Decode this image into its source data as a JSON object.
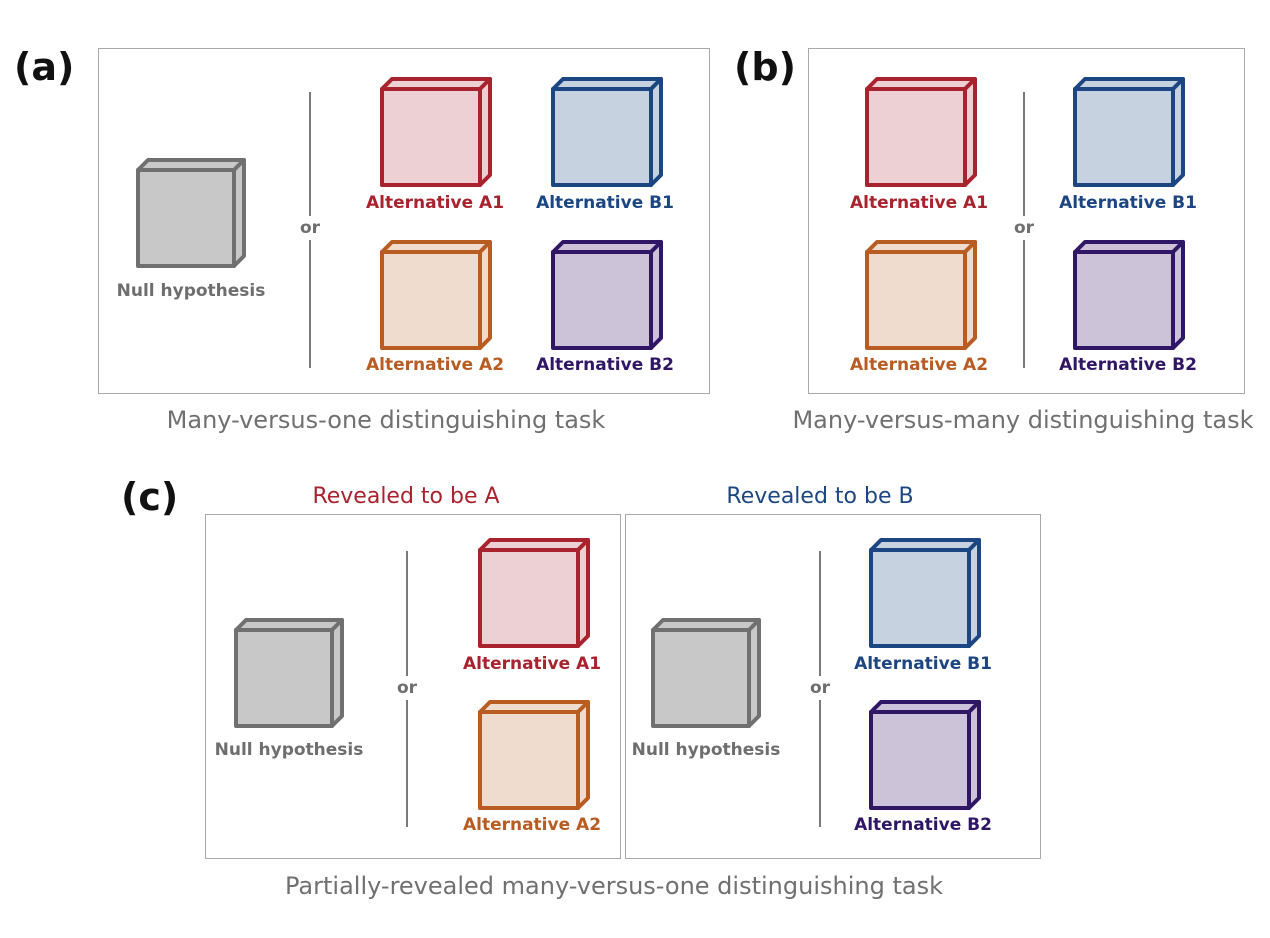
{
  "colors": {
    "null": {
      "stroke": "#707070",
      "fill": "#c8c8c8",
      "label": "#6e6e6e"
    },
    "A1": {
      "stroke": "#a8232e",
      "fill": "#ecd0d4",
      "label": "#a8232e"
    },
    "A2": {
      "stroke": "#b85c22",
      "fill": "#f0dbcf",
      "label": "#b85c22"
    },
    "B1": {
      "stroke": "#1c4682",
      "fill": "#c7d2e0",
      "label": "#1c4682"
    },
    "B2": {
      "stroke": "#301765",
      "fill": "#ccc3d9",
      "label": "#301765"
    }
  },
  "panels": {
    "a": {
      "label": "(a)",
      "caption": "Many-versus-one distinguishing task",
      "null_label": "Null hypothesis",
      "or": "or",
      "a1": "Alternative A1",
      "b1": "Alternative B1",
      "a2": "Alternative A2",
      "b2": "Alternative B2"
    },
    "b": {
      "label": "(b)",
      "caption": "Many-versus-many distinguishing task",
      "or": "or",
      "a1": "Alternative A1",
      "b1": "Alternative B1",
      "a2": "Alternative A2",
      "b2": "Alternative B2"
    },
    "c": {
      "label": "(c)",
      "caption": "Partially-revealed many-versus-one distinguishing task",
      "left": {
        "heading": "Revealed to be A",
        "null_label": "Null hypothesis",
        "or": "or",
        "top": "Alternative A1",
        "bottom": "Alternative A2"
      },
      "right": {
        "heading": "Revealed to be B",
        "null_label": "Null hypothesis",
        "or": "or",
        "top": "Alternative B1",
        "bottom": "Alternative B2"
      }
    }
  }
}
